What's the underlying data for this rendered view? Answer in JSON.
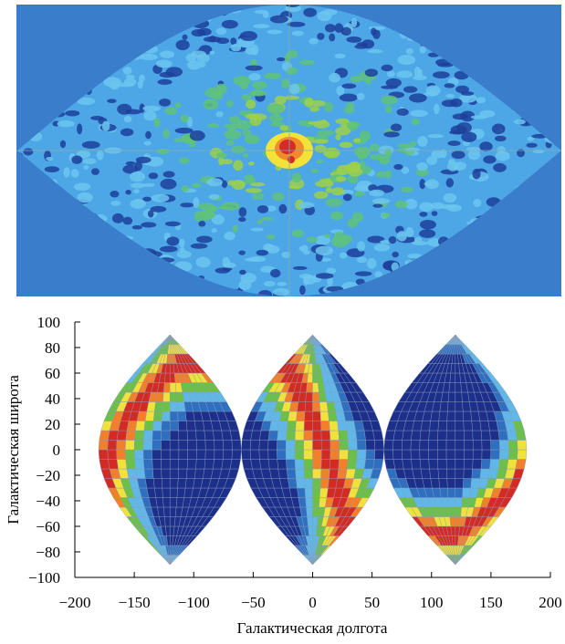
{
  "chart_data": {
    "type": "map",
    "xlabel": "Галактическая долгота",
    "ylabel": "Галактическая широта",
    "xlim": [
      -200,
      200
    ],
    "ylim": [
      -100,
      100
    ],
    "xticks": [
      {
        "value": -200,
        "label": "−200"
      },
      {
        "value": -150,
        "label": "−150"
      },
      {
        "value": -100,
        "label": "−100"
      },
      {
        "value": -50,
        "label": "−50"
      },
      0,
      50,
      100,
      150,
      200
    ],
    "yticks": [
      {
        "value": -100,
        "label": "−100"
      },
      {
        "value": -80,
        "label": "−80"
      },
      {
        "value": -60,
        "label": "−60"
      },
      {
        "value": -40,
        "label": "−40"
      },
      {
        "value": -20,
        "label": "−20"
      },
      0,
      20,
      40,
      60,
      80,
      100
    ]
  }
}
